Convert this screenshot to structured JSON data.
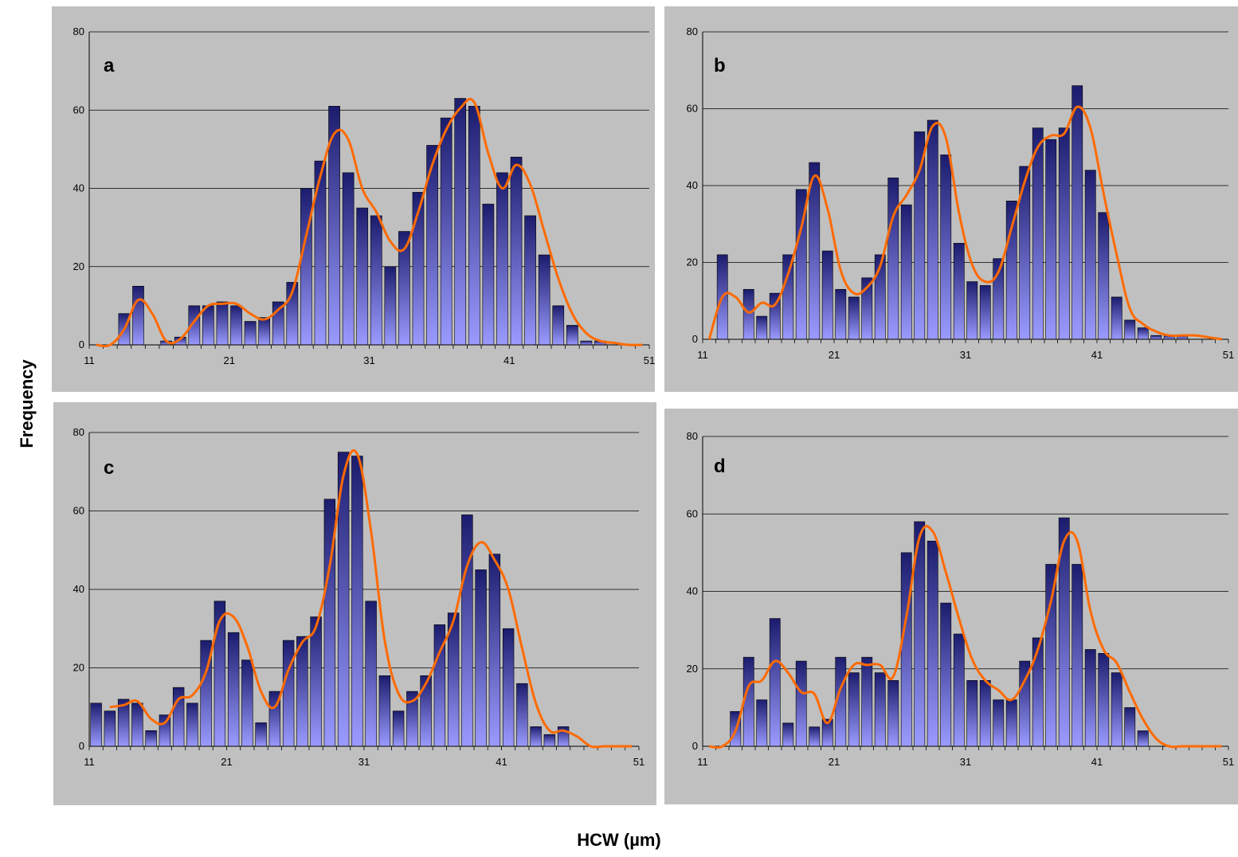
{
  "ylabel": "Frequency",
  "xlabel": "HCW (µm)",
  "chart_data": [
    {
      "type": "bar",
      "label": "a",
      "x": [
        11,
        12,
        13,
        14,
        15,
        16,
        17,
        18,
        19,
        20,
        21,
        22,
        23,
        24,
        25,
        26,
        27,
        28,
        29,
        30,
        31,
        32,
        33,
        34,
        35,
        36,
        37,
        38,
        39,
        40,
        41,
        42,
        43,
        44,
        45,
        46,
        47,
        48,
        49,
        50
      ],
      "values": [
        0,
        0,
        8,
        15,
        0,
        1,
        2,
        10,
        10,
        11,
        10,
        6,
        7,
        11,
        16,
        40,
        47,
        61,
        44,
        35,
        33,
        20,
        29,
        39,
        51,
        58,
        63,
        61,
        36,
        44,
        48,
        33,
        23,
        10,
        5,
        1,
        1,
        0,
        0,
        0
      ],
      "line": [
        0,
        0,
        4,
        11.5,
        8,
        1,
        1.5,
        6,
        10,
        10.5,
        10.5,
        8,
        6.5,
        9,
        13.5,
        28,
        43,
        54,
        52.5,
        40,
        34,
        26.5,
        24.5,
        34,
        46,
        55,
        60.5,
        62,
        49,
        40,
        46,
        41,
        29,
        17,
        8,
        3,
        1,
        0.5,
        0,
        0
      ],
      "ylim": [
        0,
        80
      ],
      "yticks": [
        0,
        20,
        40,
        60,
        80
      ],
      "xlim": [
        11,
        51
      ],
      "xticks": [
        11,
        21,
        31,
        41,
        51
      ]
    },
    {
      "type": "bar",
      "label": "b",
      "x": [
        11,
        12,
        13,
        14,
        15,
        16,
        17,
        18,
        19,
        20,
        21,
        22,
        23,
        24,
        25,
        26,
        27,
        28,
        29,
        30,
        31,
        32,
        33,
        34,
        35,
        36,
        37,
        38,
        39,
        40,
        41,
        42,
        43,
        44,
        45,
        46,
        47,
        48,
        49,
        50
      ],
      "values": [
        0,
        22,
        0,
        13,
        6,
        12,
        22,
        39,
        46,
        23,
        13,
        11,
        16,
        22,
        42,
        35,
        54,
        57,
        48,
        25,
        15,
        14,
        21,
        36,
        45,
        55,
        52,
        55,
        66,
        44,
        33,
        11,
        5,
        3,
        1,
        1,
        1,
        0,
        0,
        0
      ],
      "line": [
        0,
        11,
        11,
        7,
        9.5,
        9,
        17,
        29,
        42.5,
        34,
        18,
        12,
        13.5,
        19,
        32,
        37.5,
        44,
        55.5,
        52.5,
        33,
        19.5,
        15,
        17.5,
        29,
        41,
        50,
        53,
        53.5,
        60.5,
        55,
        38,
        22,
        8,
        4,
        2,
        1,
        1,
        1,
        0.5,
        0
      ],
      "ylim": [
        0,
        80
      ],
      "yticks": [
        0,
        20,
        40,
        60,
        80
      ],
      "xlim": [
        11,
        51
      ],
      "xticks": [
        11,
        21,
        31,
        41,
        51
      ]
    },
    {
      "type": "bar",
      "label": "c",
      "x": [
        11,
        12,
        13,
        14,
        15,
        16,
        17,
        18,
        19,
        20,
        21,
        22,
        23,
        24,
        25,
        26,
        27,
        28,
        29,
        30,
        31,
        32,
        33,
        34,
        35,
        36,
        37,
        38,
        39,
        40,
        41,
        42,
        43,
        44,
        45,
        46,
        47,
        48,
        49,
        50
      ],
      "values": [
        11,
        9,
        12,
        11,
        4,
        8,
        15,
        11,
        27,
        37,
        29,
        22,
        6,
        14,
        27,
        28,
        33,
        63,
        75,
        74,
        37,
        18,
        9,
        14,
        18,
        31,
        34,
        59,
        45,
        49,
        30,
        16,
        5,
        3,
        5,
        0,
        0,
        0,
        0,
        0
      ],
      "line": [
        null,
        10,
        10.5,
        11.5,
        7,
        6,
        12,
        13,
        19,
        32,
        33,
        25.5,
        14,
        10,
        19.5,
        26.5,
        30.5,
        46,
        69,
        74.5,
        55,
        27,
        13.5,
        11.5,
        16,
        24,
        32,
        46,
        52,
        47.5,
        40,
        25,
        11,
        4,
        4,
        2.5,
        0,
        0,
        0,
        0
      ],
      "ylim": [
        0,
        80
      ],
      "yticks": [
        0,
        20,
        40,
        60,
        80
      ],
      "xlim": [
        11,
        51
      ],
      "xticks": [
        11,
        21,
        31,
        41,
        51
      ]
    },
    {
      "type": "bar",
      "label": "d",
      "x": [
        11,
        12,
        13,
        14,
        15,
        16,
        17,
        18,
        19,
        20,
        21,
        22,
        23,
        24,
        25,
        26,
        27,
        28,
        29,
        30,
        31,
        32,
        33,
        34,
        35,
        36,
        37,
        38,
        39,
        40,
        41,
        42,
        43,
        44,
        45,
        46,
        47,
        48,
        49,
        50
      ],
      "values": [
        0,
        0,
        9,
        23,
        12,
        33,
        6,
        22,
        5,
        7,
        23,
        19,
        23,
        19,
        17,
        50,
        58,
        53,
        37,
        29,
        17,
        17,
        12,
        12,
        22,
        28,
        47,
        59,
        47,
        25,
        24,
        19,
        10,
        4,
        0,
        0,
        0,
        0,
        0,
        0
      ],
      "line": [
        0,
        0,
        4,
        15.5,
        17,
        22,
        19,
        14,
        13.5,
        6,
        15,
        21,
        21,
        21,
        18,
        33.5,
        54,
        55.5,
        45,
        33,
        22.5,
        17,
        14.5,
        12,
        17,
        25,
        37.5,
        53,
        53,
        35,
        25,
        21.5,
        14,
        7,
        2,
        0,
        0,
        0,
        0,
        0
      ],
      "ylim": [
        0,
        80
      ],
      "yticks": [
        0,
        20,
        40,
        60,
        80
      ],
      "xlim": [
        11,
        51
      ],
      "xticks": [
        11,
        21,
        31,
        41,
        51
      ]
    }
  ]
}
